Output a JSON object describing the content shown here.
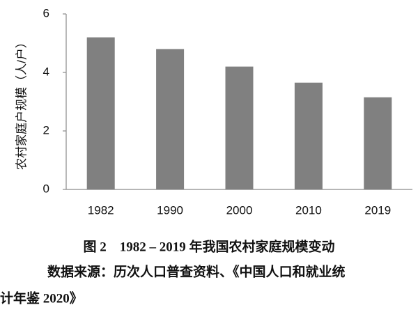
{
  "chart_data": {
    "type": "bar",
    "y_label": "农村家庭户规模（人/户）",
    "categories": [
      "1982",
      "1990",
      "2000",
      "2010",
      "2019"
    ],
    "values": [
      5.2,
      4.8,
      4.2,
      3.65,
      3.15
    ],
    "color": "#808080",
    "ylim": [
      0,
      6
    ],
    "yticks": [
      0,
      2,
      4,
      6
    ],
    "grid": false,
    "caption": "图 2　1982 – 2019 年我国农村家庭规模变动",
    "source_lines": [
      "数据来源：历次人口普查资料、《中国人口和就业统",
      "计年鉴 2020》"
    ]
  }
}
